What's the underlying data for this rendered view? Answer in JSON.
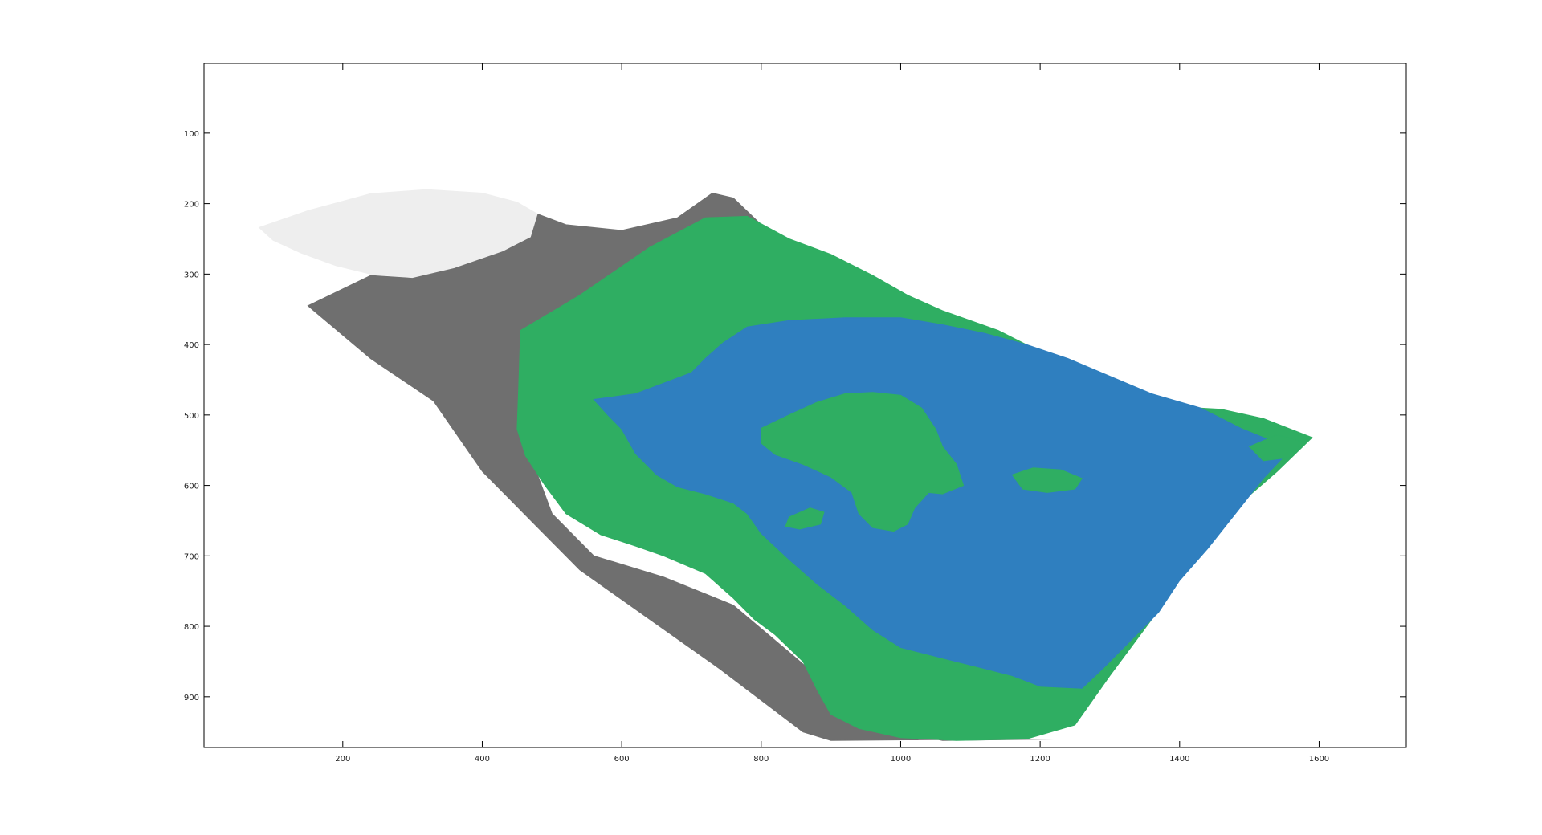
{
  "chart_data": {
    "type": "image",
    "title": "",
    "xlabel": "",
    "ylabel": "",
    "xlim": [
      1,
      1725
    ],
    "ylim": [
      972,
      1
    ],
    "y_reversed": true,
    "grid": false,
    "legend": "none",
    "x_ticks": [
      200,
      400,
      600,
      800,
      1000,
      1200,
      1400,
      1600
    ],
    "y_ticks": [
      100,
      200,
      300,
      400,
      500,
      600,
      700,
      800,
      900
    ],
    "x_tick_labels": [
      "200",
      "400",
      "600",
      "800",
      "1000",
      "1200",
      "1400",
      "1600"
    ],
    "y_tick_labels": [
      "100",
      "200",
      "300",
      "400",
      "500",
      "600",
      "700",
      "800",
      "900"
    ],
    "colors": {
      "snow": "#eeeeee",
      "rock": "#6f6f6f",
      "vegetation": "#2fae62",
      "water": "#2f7fbf"
    },
    "regions": [
      {
        "name": "snow",
        "color": "#eeeeee",
        "polygon": [
          [
            80,
            234
          ],
          [
            150,
            210
          ],
          [
            240,
            186
          ],
          [
            320,
            180
          ],
          [
            400,
            185
          ],
          [
            450,
            198
          ],
          [
            480,
            215
          ],
          [
            470,
            248
          ],
          [
            430,
            268
          ],
          [
            360,
            292
          ],
          [
            300,
            305
          ],
          [
            240,
            300
          ],
          [
            190,
            288
          ],
          [
            140,
            270
          ],
          [
            100,
            252
          ]
        ]
      },
      {
        "name": "rock",
        "color": "#6f6f6f",
        "polygon": [
          [
            150,
            345
          ],
          [
            240,
            302
          ],
          [
            300,
            306
          ],
          [
            360,
            292
          ],
          [
            430,
            268
          ],
          [
            470,
            248
          ],
          [
            480,
            215
          ],
          [
            520,
            230
          ],
          [
            600,
            238
          ],
          [
            680,
            220
          ],
          [
            730,
            185
          ],
          [
            760,
            192
          ],
          [
            800,
            230
          ],
          [
            820,
            240
          ],
          [
            700,
            300
          ],
          [
            560,
            330
          ],
          [
            470,
            400
          ],
          [
            455,
            480
          ],
          [
            470,
            560
          ],
          [
            500,
            640
          ],
          [
            560,
            700
          ],
          [
            660,
            730
          ],
          [
            760,
            770
          ],
          [
            850,
            845
          ],
          [
            920,
            905
          ],
          [
            1000,
            950
          ],
          [
            1060,
            962
          ],
          [
            1220,
            960
          ],
          [
            1160,
            960
          ],
          [
            900,
            962
          ],
          [
            860,
            950
          ],
          [
            820,
            920
          ],
          [
            740,
            860
          ],
          [
            640,
            790
          ],
          [
            540,
            720
          ],
          [
            470,
            650
          ],
          [
            400,
            580
          ],
          [
            330,
            480
          ],
          [
            240,
            420
          ]
        ]
      },
      {
        "name": "vegetation",
        "color": "#2fae62",
        "polygon": [
          [
            455,
            380
          ],
          [
            540,
            330
          ],
          [
            640,
            262
          ],
          [
            720,
            220
          ],
          [
            780,
            218
          ],
          [
            840,
            250
          ],
          [
            900,
            272
          ],
          [
            960,
            302
          ],
          [
            1010,
            330
          ],
          [
            1060,
            352
          ],
          [
            1140,
            380
          ],
          [
            1200,
            410
          ],
          [
            1270,
            455
          ],
          [
            1330,
            480
          ],
          [
            1390,
            488
          ],
          [
            1460,
            492
          ],
          [
            1520,
            505
          ],
          [
            1590,
            532
          ],
          [
            1540,
            580
          ],
          [
            1470,
            640
          ],
          [
            1420,
            700
          ],
          [
            1360,
            790
          ],
          [
            1300,
            870
          ],
          [
            1250,
            940
          ],
          [
            1180,
            960
          ],
          [
            1080,
            962
          ],
          [
            1000,
            958
          ],
          [
            940,
            945
          ],
          [
            900,
            925
          ],
          [
            880,
            890
          ],
          [
            860,
            850
          ],
          [
            820,
            812
          ],
          [
            790,
            790
          ],
          [
            760,
            760
          ],
          [
            720,
            725
          ],
          [
            660,
            700
          ],
          [
            620,
            686
          ],
          [
            570,
            670
          ],
          [
            520,
            640
          ],
          [
            490,
            600
          ],
          [
            462,
            558
          ],
          [
            450,
            520
          ],
          [
            452,
            468
          ]
        ]
      },
      {
        "name": "water",
        "color": "#2f7fbf",
        "polygon": [
          [
            560,
            478
          ],
          [
            620,
            470
          ],
          [
            660,
            455
          ],
          [
            700,
            440
          ],
          [
            720,
            420
          ],
          [
            745,
            398
          ],
          [
            780,
            375
          ],
          [
            840,
            366
          ],
          [
            920,
            362
          ],
          [
            1000,
            362
          ],
          [
            1060,
            372
          ],
          [
            1120,
            384
          ],
          [
            1180,
            400
          ],
          [
            1240,
            420
          ],
          [
            1300,
            445
          ],
          [
            1360,
            470
          ],
          [
            1430,
            490
          ],
          [
            1490,
            520
          ],
          [
            1560,
            548
          ],
          [
            1520,
            590
          ],
          [
            1480,
            640
          ],
          [
            1440,
            690
          ],
          [
            1400,
            735
          ],
          [
            1370,
            780
          ],
          [
            1330,
            820
          ],
          [
            1290,
            860
          ],
          [
            1260,
            888
          ],
          [
            1200,
            885
          ],
          [
            1160,
            870
          ],
          [
            1120,
            860
          ],
          [
            1060,
            845
          ],
          [
            1000,
            830
          ],
          [
            960,
            805
          ],
          [
            920,
            770
          ],
          [
            880,
            740
          ],
          [
            840,
            705
          ],
          [
            800,
            668
          ],
          [
            780,
            640
          ],
          [
            760,
            625
          ],
          [
            720,
            612
          ],
          [
            680,
            602
          ],
          [
            650,
            585
          ],
          [
            620,
            555
          ],
          [
            600,
            520
          ],
          [
            580,
            500
          ]
        ]
      },
      {
        "name": "island",
        "color": "#2fae62",
        "polygon": [
          [
            800,
            519
          ],
          [
            840,
            500
          ],
          [
            880,
            482
          ],
          [
            920,
            470
          ],
          [
            960,
            468
          ],
          [
            1000,
            472
          ],
          [
            1030,
            490
          ],
          [
            1050,
            520
          ],
          [
            1060,
            545
          ],
          [
            1080,
            570
          ],
          [
            1090,
            600
          ],
          [
            1060,
            612
          ],
          [
            1040,
            610
          ],
          [
            1020,
            632
          ],
          [
            1010,
            655
          ],
          [
            990,
            665
          ],
          [
            960,
            660
          ],
          [
            940,
            640
          ],
          [
            930,
            610
          ],
          [
            900,
            588
          ],
          [
            860,
            570
          ],
          [
            820,
            556
          ],
          [
            800,
            540
          ]
        ]
      },
      {
        "name": "islet-1",
        "color": "#2fae62",
        "polygon": [
          [
            1160,
            585
          ],
          [
            1190,
            575
          ],
          [
            1230,
            578
          ],
          [
            1260,
            590
          ],
          [
            1250,
            605
          ],
          [
            1210,
            610
          ],
          [
            1175,
            605
          ]
        ]
      },
      {
        "name": "islet-2",
        "color": "#2fae62",
        "polygon": [
          [
            840,
            645
          ],
          [
            870,
            632
          ],
          [
            890,
            638
          ],
          [
            885,
            655
          ],
          [
            855,
            662
          ],
          [
            835,
            658
          ]
        ]
      },
      {
        "name": "shore-patch",
        "color": "#2fae62",
        "polygon": [
          [
            1500,
            545
          ],
          [
            1540,
            528
          ],
          [
            1575,
            538
          ],
          [
            1560,
            560
          ],
          [
            1520,
            565
          ]
        ]
      }
    ]
  }
}
